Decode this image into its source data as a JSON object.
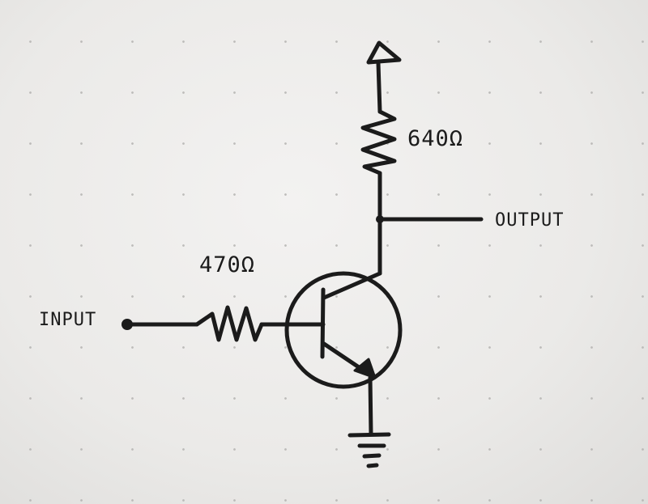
{
  "diagram": {
    "labels": {
      "input": "INPUT",
      "output": "OUTPUT",
      "base_resistor": "470Ω",
      "collector_resistor": "640Ω"
    },
    "colors": {
      "ink": "#1b1b1b",
      "paper": "#efeeec",
      "dots": "#b8b7b5"
    },
    "components": {
      "transistor": "npn-transistor",
      "supply": "supply-arrow-icon",
      "ground": "ground-icon"
    }
  }
}
